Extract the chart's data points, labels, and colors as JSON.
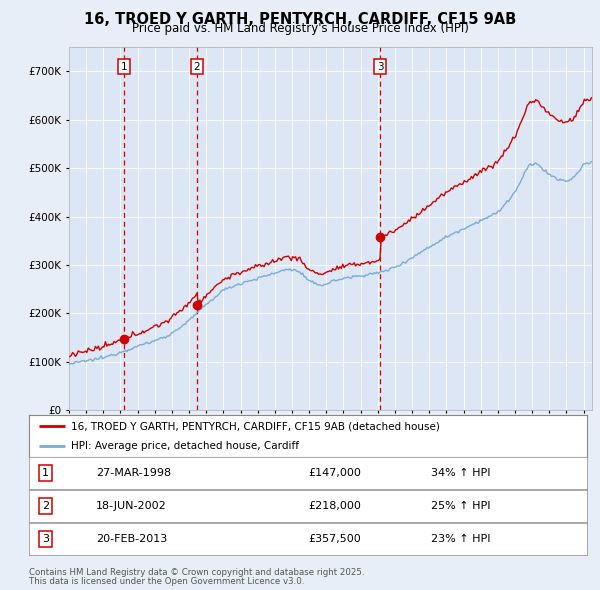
{
  "title_line1": "16, TROED Y GARTH, PENTYRCH, CARDIFF, CF15 9AB",
  "title_line2": "Price paid vs. HM Land Registry's House Price Index (HPI)",
  "background_color": "#e8eef7",
  "plot_bg_color": "#dce6f5",
  "legend_label_red": "16, TROED Y GARTH, PENTYRCH, CARDIFF, CF15 9AB (detached house)",
  "legend_label_blue": "HPI: Average price, detached house, Cardiff",
  "sale_labels": [
    "1",
    "2",
    "3"
  ],
  "sale_hpi_pct": [
    "34% ↑ HPI",
    "25% ↑ HPI",
    "23% ↑ HPI"
  ],
  "sale_date_strs": [
    "27-MAR-1998",
    "18-JUN-2002",
    "20-FEB-2013"
  ],
  "sale_price_strs": [
    "£147,000",
    "£218,000",
    "£357,500"
  ],
  "sale_prices": [
    147000,
    218000,
    357500
  ],
  "sale_times": [
    1998.23,
    2002.46,
    2013.13
  ],
  "footer_line1": "Contains HM Land Registry data © Crown copyright and database right 2025.",
  "footer_line2": "This data is licensed under the Open Government Licence v3.0.",
  "ylim": [
    0,
    750000
  ],
  "yticks": [
    0,
    100000,
    200000,
    300000,
    400000,
    500000,
    600000,
    700000
  ],
  "ytick_labels": [
    "£0",
    "£100K",
    "£200K",
    "£300K",
    "£400K",
    "£500K",
    "£600K",
    "£700K"
  ],
  "red_color": "#cc0000",
  "blue_color": "#7aadd4",
  "vline_color": "#cc0000",
  "xlim_start": 1995.0,
  "xlim_end": 2025.5
}
